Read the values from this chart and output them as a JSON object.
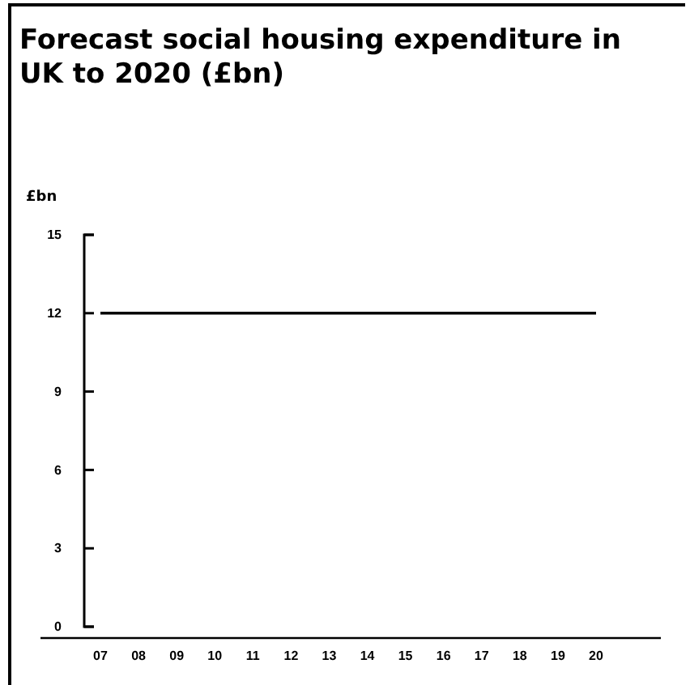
{
  "chart_data": {
    "type": "line",
    "title": "Forecast social housing expenditure in UK to 2020 (£bn)",
    "ylabel": "£bn",
    "categories": [
      "07",
      "08",
      "09",
      "10",
      "11",
      "12",
      "13",
      "14",
      "15",
      "16",
      "17",
      "18",
      "19",
      "20"
    ],
    "series": [
      {
        "color": "#000000",
        "values": [
          12,
          12,
          12,
          12,
          12,
          12,
          12,
          12,
          12,
          12,
          12,
          12,
          12,
          12
        ]
      }
    ],
    "ylim": [
      0,
      15
    ],
    "yticks": [
      0,
      3,
      6,
      9,
      12,
      15
    ],
    "marker": "none",
    "line_style": "solid"
  }
}
